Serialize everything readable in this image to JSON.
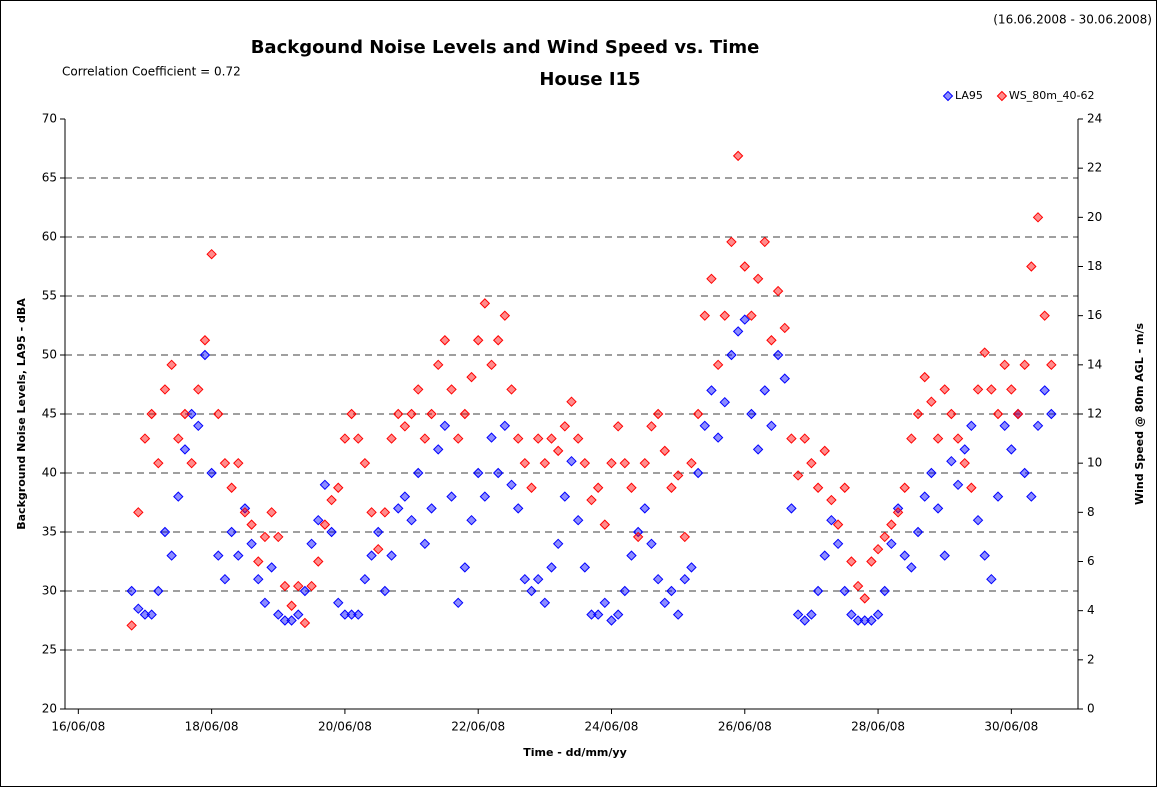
{
  "chart_data": {
    "type": "scatter",
    "title": "Backgound Noise Levels and Wind Speed vs. Time",
    "subtitle": "House I15",
    "date_range": "(16.06.2008 - 30.06.2008)",
    "annotation": "Correlation Coefficient = 0.72",
    "x_label": "Time - dd/mm/yy",
    "y_label": "Background Noise Levels, LA95 - dBA",
    "y2_label": "Wind Speed @ 80m AGL - m/s",
    "legend": "top-right",
    "grid": true,
    "xlim": [
      15.8,
      31
    ],
    "xticks": [
      {
        "value": 16,
        "label": "16/06/08"
      },
      {
        "value": 18,
        "label": "18/06/08"
      },
      {
        "value": 20,
        "label": "20/06/08"
      },
      {
        "value": 22,
        "label": "22/06/08"
      },
      {
        "value": 24,
        "label": "24/06/08"
      },
      {
        "value": 26,
        "label": "26/06/08"
      },
      {
        "value": 28,
        "label": "28/06/08"
      },
      {
        "value": 30,
        "label": "30/06/08"
      }
    ],
    "ylim": [
      20,
      70
    ],
    "yticks": [
      20,
      25,
      30,
      35,
      40,
      45,
      50,
      55,
      60,
      65,
      70
    ],
    "y2lim": [
      0,
      24
    ],
    "y2ticks": [
      0,
      2,
      4,
      6,
      8,
      10,
      12,
      14,
      16,
      18,
      20,
      22,
      24
    ],
    "x": [
      16.8,
      16.9,
      17.0,
      17.1,
      17.2,
      17.3,
      17.4,
      17.5,
      17.6,
      17.7,
      17.8,
      17.9,
      18.0,
      18.1,
      18.2,
      18.3,
      18.4,
      18.5,
      18.6,
      18.7,
      18.8,
      18.9,
      19.0,
      19.1,
      19.2,
      19.3,
      19.4,
      19.5,
      19.6,
      19.7,
      19.8,
      19.9,
      20.0,
      20.1,
      20.2,
      20.3,
      20.4,
      20.5,
      20.6,
      20.7,
      20.8,
      20.9,
      21.0,
      21.1,
      21.2,
      21.3,
      21.4,
      21.5,
      21.6,
      21.7,
      21.8,
      21.9,
      22.0,
      22.1,
      22.2,
      22.3,
      22.4,
      22.5,
      22.6,
      22.7,
      22.8,
      22.9,
      23.0,
      23.1,
      23.2,
      23.3,
      23.4,
      23.5,
      23.6,
      23.7,
      23.8,
      23.9,
      24.0,
      24.1,
      24.2,
      24.3,
      24.4,
      24.5,
      24.6,
      24.7,
      24.8,
      24.9,
      25.0,
      25.1,
      25.2,
      25.3,
      25.4,
      25.5,
      25.6,
      25.7,
      25.8,
      25.9,
      26.0,
      26.1,
      26.2,
      26.3,
      26.4,
      26.5,
      26.6,
      26.7,
      26.8,
      26.9,
      27.0,
      27.1,
      27.2,
      27.3,
      27.4,
      27.5,
      27.6,
      27.7,
      27.8,
      27.9,
      28.0,
      28.1,
      28.2,
      28.3,
      28.4,
      28.5,
      28.6,
      28.7,
      28.8,
      28.9,
      29.0,
      29.1,
      29.2,
      29.3,
      29.4,
      29.5,
      29.6,
      29.7,
      29.8,
      29.9,
      30.0,
      30.1,
      30.2,
      30.3,
      30.4,
      30.5,
      30.6
    ],
    "series": [
      {
        "name": "LA95",
        "color": "#0000ff",
        "values": [
          30,
          28.5,
          28,
          28,
          30,
          35,
          33,
          38,
          42,
          45,
          44,
          50,
          40,
          33,
          31,
          35,
          33,
          37,
          34,
          31,
          29,
          32,
          28,
          27.5,
          27.5,
          28,
          30,
          34,
          36,
          39,
          35,
          29,
          28,
          28,
          28,
          31,
          33,
          35,
          30,
          33,
          37,
          38,
          36,
          40,
          34,
          37,
          42,
          44,
          38,
          29,
          32,
          36,
          40,
          38,
          43,
          40,
          44,
          39,
          37,
          31,
          30,
          31,
          29,
          32,
          34,
          38,
          41,
          36,
          32,
          28,
          28,
          29,
          27.5,
          28,
          30,
          33,
          35,
          37,
          34,
          31,
          29,
          30,
          28,
          31,
          32,
          40,
          44,
          47,
          43,
          46,
          50,
          52,
          53,
          45,
          42,
          47,
          44,
          50,
          48,
          37,
          28,
          27.5,
          28,
          30,
          33,
          36,
          34,
          30,
          28,
          27.5,
          27.5,
          27.5,
          28,
          30,
          34,
          37,
          33,
          32,
          35,
          38,
          40,
          37,
          33,
          41,
          39,
          42,
          44,
          36,
          33,
          31,
          38,
          44,
          42,
          45,
          40,
          38,
          44,
          47,
          45
        ]
      },
      {
        "name": "WS_80m_40-62",
        "color": "#ff0000",
        "axis": "y2",
        "values": [
          3.4,
          8,
          11,
          12,
          10,
          13,
          14,
          11,
          12,
          10,
          13,
          15,
          18.5,
          12,
          10,
          9,
          10,
          8,
          7.5,
          6,
          7,
          8,
          7,
          5,
          4.2,
          5,
          3.5,
          5,
          6,
          7.5,
          8.5,
          9,
          11,
          12,
          11,
          10,
          8,
          6.5,
          8,
          11,
          12,
          11.5,
          12,
          13,
          11,
          12,
          14,
          15,
          13,
          11,
          12,
          13.5,
          15,
          16.5,
          14,
          15,
          16,
          13,
          11,
          10,
          9,
          11,
          10,
          11,
          10.5,
          11.5,
          12.5,
          11,
          10,
          8.5,
          9,
          7.5,
          10,
          11.5,
          10,
          9,
          7,
          10,
          11.5,
          12,
          10.5,
          9,
          9.5,
          7,
          10,
          12,
          16,
          17.5,
          14,
          16,
          19,
          22.5,
          18,
          16,
          17.5,
          19,
          15,
          17,
          15.5,
          11,
          9.5,
          11,
          10,
          9,
          10.5,
          8.5,
          7.5,
          9,
          6,
          5,
          4.5,
          6,
          6.5,
          7,
          7.5,
          8,
          9,
          11,
          12,
          13.5,
          12.5,
          11,
          13,
          12,
          11,
          10,
          9,
          13,
          14.5,
          13,
          12,
          14,
          13,
          12,
          14,
          18,
          20,
          16,
          14
        ]
      }
    ]
  }
}
